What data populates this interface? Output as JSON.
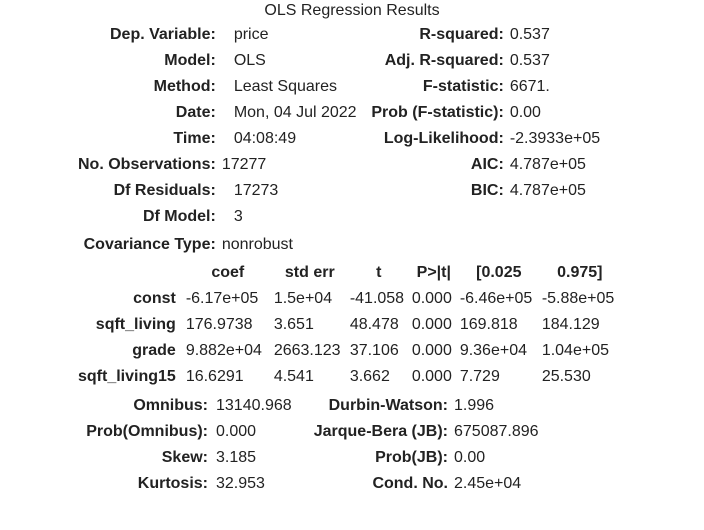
{
  "caption": "OLS Regression Results",
  "summary": {
    "rows": [
      {
        "l1": "Dep. Variable:",
        "v1": "price",
        "l2": "R-squared:",
        "v2": "0.537"
      },
      {
        "l1": "Model:",
        "v1": "OLS",
        "l2": "Adj. R-squared:",
        "v2": "0.537"
      },
      {
        "l1": "Method:",
        "v1": "Least Squares",
        "l2": "F-statistic:",
        "v2": "6671."
      },
      {
        "l1": "Date:",
        "v1": "Mon, 04 Jul 2022",
        "l2": "Prob (F-statistic):",
        "v2": "0.00"
      },
      {
        "l1": "Time:",
        "v1": "04:08:49",
        "l2": "Log-Likelihood:",
        "v2": "-2.3933e+05"
      },
      {
        "l1": "No. Observations:",
        "v1": "17277",
        "l2": "AIC:",
        "v2": "4.787e+05"
      },
      {
        "l1": "Df Residuals:",
        "v1": "17273",
        "l2": "BIC:",
        "v2": "4.787e+05"
      },
      {
        "l1": "Df Model:",
        "v1": "3",
        "l2": "",
        "v2": ""
      },
      {
        "l1": "Covariance Type:",
        "v1": "nonrobust",
        "l2": "",
        "v2": ""
      }
    ]
  },
  "coefficients": {
    "headers": [
      "coef",
      "std err",
      "t",
      "P>|t|",
      "[0.025",
      "0.975]"
    ],
    "rows": [
      {
        "name": "const",
        "cells": [
          "-6.17e+05",
          "1.5e+04",
          "-41.058",
          "0.000",
          "-6.46e+05",
          "-5.88e+05"
        ]
      },
      {
        "name": "sqft_living",
        "cells": [
          "176.9738",
          "3.651",
          "48.478",
          "0.000",
          "169.818",
          "184.129"
        ]
      },
      {
        "name": "grade",
        "cells": [
          "9.882e+04",
          "2663.123",
          "37.106",
          "0.000",
          "9.36e+04",
          "1.04e+05"
        ]
      },
      {
        "name": "sqft_living15",
        "cells": [
          "16.6291",
          "4.541",
          "3.662",
          "0.000",
          "7.729",
          "25.530"
        ]
      }
    ]
  },
  "diagnostics": {
    "rows": [
      {
        "l1": "Omnibus:",
        "v1": "13140.968",
        "l2": "Durbin-Watson:",
        "v2": "1.996"
      },
      {
        "l1": "Prob(Omnibus):",
        "v1": "0.000",
        "l2": "Jarque-Bera (JB):",
        "v2": "675087.896"
      },
      {
        "l1": "Skew:",
        "v1": "3.185",
        "l2": "Prob(JB):",
        "v2": "0.00"
      },
      {
        "l1": "Kurtosis:",
        "v1": "32.953",
        "l2": "Cond. No.",
        "v2": "2.45e+04"
      }
    ]
  }
}
